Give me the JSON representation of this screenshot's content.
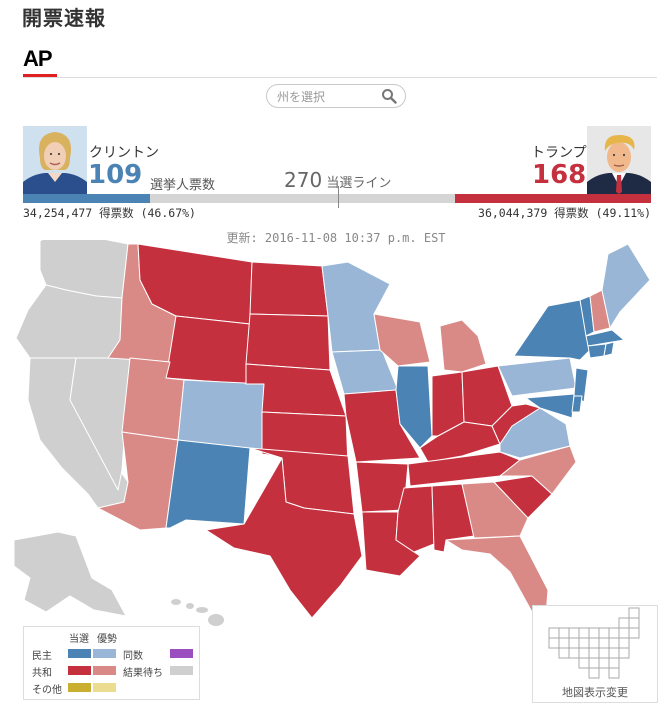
{
  "header": {
    "title": "開票速報",
    "source_logo": "AP"
  },
  "search": {
    "placeholder": "州を選択"
  },
  "candidates": {
    "dem": {
      "name": "クリントン",
      "electoral_votes": "109",
      "popular": "34,254,477 得票数 (46.67%)",
      "ev_fraction": 0.2026,
      "color": "#4a83b4"
    },
    "rep": {
      "name": "トランプ",
      "electoral_votes": "168",
      "popular": "36,044,379 得票数 (49.11%)",
      "ev_fraction": 0.3123,
      "color": "#c5303e"
    }
  },
  "ev_label": "選挙人票数",
  "threshold": {
    "value": "270",
    "label": "当選ライン"
  },
  "updated": "更新: 2016-11-08 10:37 p.m. EST",
  "legend": {
    "heading_won": "当選",
    "heading_leading": "優勢",
    "dem": "民主",
    "rep": "共和",
    "other": "その他",
    "tied": "同数",
    "pending": "結果待ち"
  },
  "map_switch_label": "地図表示変更",
  "colors": {
    "dem_won": "#4a83b4",
    "dem_lead": "#9ab6d6",
    "rep_won": "#c5303e",
    "rep_lead": "#d98a87",
    "other_won": "#c9ae2f",
    "other_lead": "#ecdc8f",
    "tied": "#9b4ec0",
    "pending": "#cfcfcf"
  }
}
